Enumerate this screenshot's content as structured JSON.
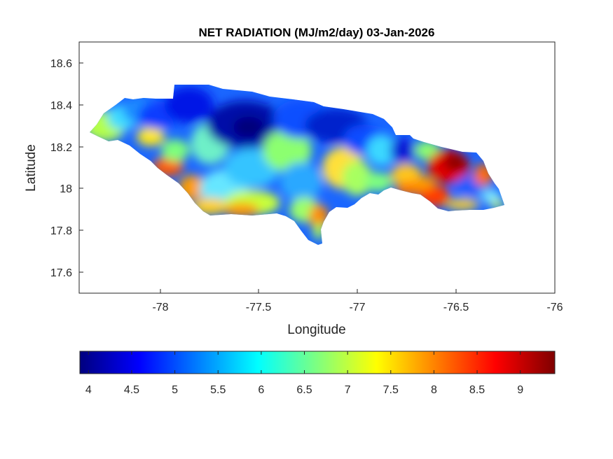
{
  "title": "NET RADIATION (MJ/m2/day) 03-Jan-2026",
  "map": {
    "xlabel": "Longitude",
    "ylabel": "Latitude",
    "xlim": [
      -78.4,
      -76
    ],
    "ylim": [
      17.5,
      18.7
    ],
    "xticks": [
      "-78",
      "-77.5",
      "-77",
      "-76.5",
      "-76"
    ],
    "yticks": [
      "17.6",
      "17.8",
      "18",
      "18.2",
      "18.4",
      "18.6"
    ],
    "region": "Jamaica",
    "field_hotspots": [
      {
        "label": "west-central interior low",
        "lon": -77.55,
        "lat": 18.3,
        "value": 4.0
      },
      {
        "label": "northeast high",
        "lon": -76.5,
        "lat": 18.12,
        "value": 9.2
      },
      {
        "label": "south coast high",
        "lon": -77.2,
        "lat": 17.85,
        "value": 8.0
      },
      {
        "label": "southwest coast high",
        "lon": -77.95,
        "lat": 18.1,
        "value": 8.5
      },
      {
        "label": "southeast interior",
        "lon": -76.7,
        "lat": 17.95,
        "value": 8.2
      }
    ]
  },
  "colorbar": {
    "colormap": "jet",
    "range": [
      3.9,
      9.4
    ],
    "ticks": [
      "4",
      "4.5",
      "5",
      "5.5",
      "6",
      "6.5",
      "7",
      "7.5",
      "8",
      "8.5",
      "9"
    ]
  },
  "colors": {
    "axis": "#262626",
    "jet_stops": [
      "#00007f",
      "#0000ff",
      "#007fff",
      "#00ffff",
      "#7fff7f",
      "#ffff00",
      "#ff7f00",
      "#ff0000",
      "#7f0000"
    ]
  }
}
